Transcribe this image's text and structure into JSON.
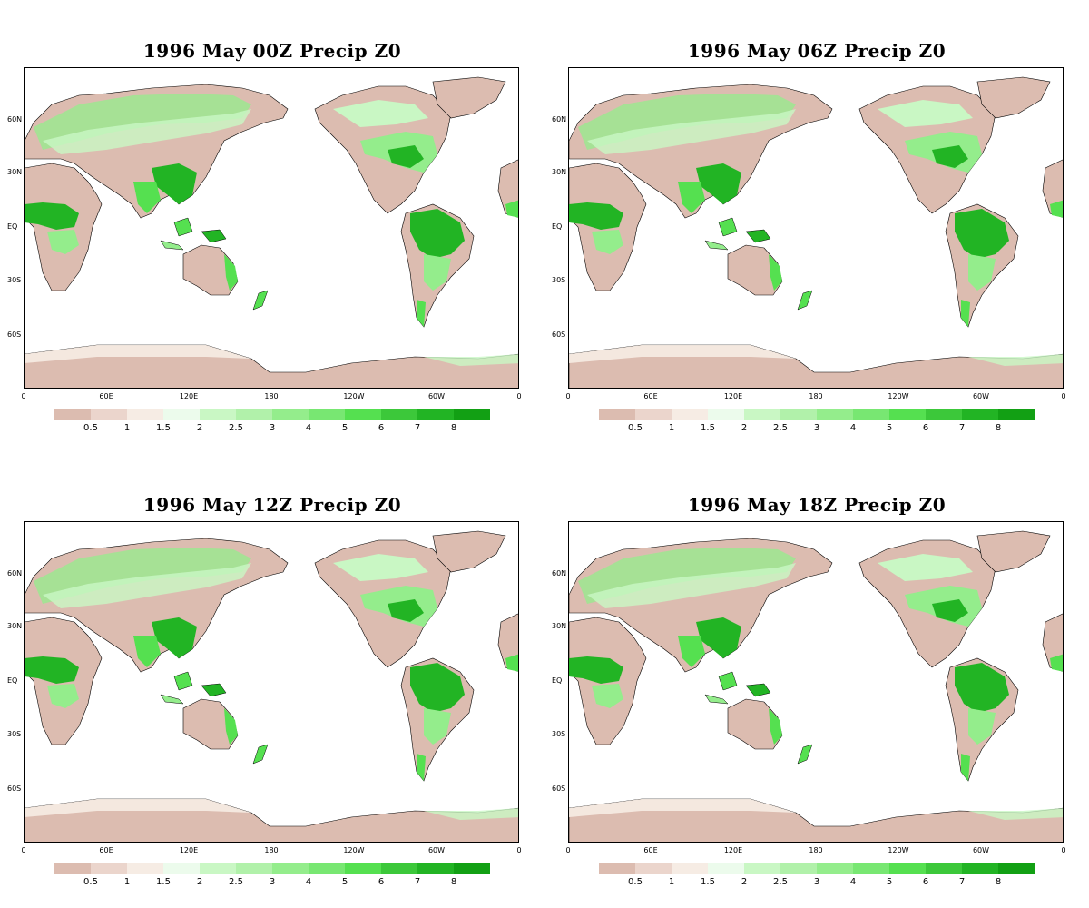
{
  "panels": [
    {
      "title": "1996 May  00Z Precip Z0"
    },
    {
      "title": "1996  May 06Z Precip Z0"
    },
    {
      "title": "1996  May 12Z Precip Z0"
    },
    {
      "title": "1996  May 18Z Precip Z0"
    }
  ],
  "lat_labels": [
    "60N",
    "30N",
    "EQ",
    "30S",
    "60S"
  ],
  "lon_labels": [
    "0",
    "60E",
    "120E",
    "180",
    "120W",
    "60W",
    "0"
  ],
  "colorbar": {
    "colors": [
      "#dcbcb0",
      "#ebd5cc",
      "#f6ece4",
      "#ecfbec",
      "#c9f7c4",
      "#b1f1aa",
      "#94ed8c",
      "#78e772",
      "#55e050",
      "#3cc83a",
      "#22b424",
      "#12a014"
    ],
    "labels": [
      "0.5",
      "1",
      "1.5",
      "2",
      "2.5",
      "3",
      "4",
      "5",
      "6",
      "7",
      "8"
    ]
  },
  "colors": {
    "dry": "#dcbcb0",
    "light": "#ebd5cc",
    "pale": "#f6ece4",
    "green1": "#c9f7c4",
    "green2": "#94ed8c",
    "green3": "#55e050",
    "green4": "#22b424",
    "green5": "#12a014"
  }
}
